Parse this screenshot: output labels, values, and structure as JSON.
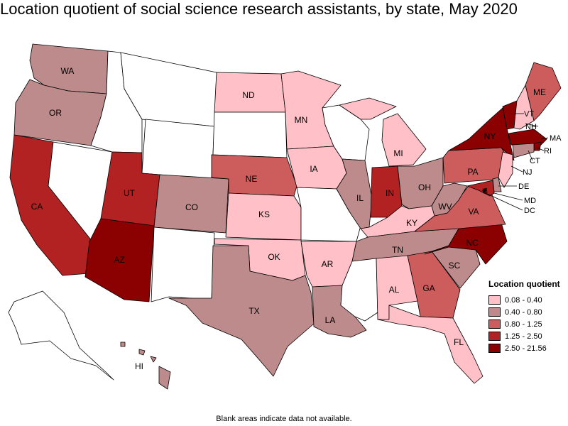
{
  "title": "Location quotient of social science research assistants, by state, May 2020",
  "footnote": "Blank areas indicate data not available.",
  "legend": {
    "title": "Location quotient",
    "items": [
      {
        "label": "0.08 - 0.40",
        "color": "#ffc0c8"
      },
      {
        "label": "0.40 - 0.80",
        "color": "#bd8b8b"
      },
      {
        "label": "0.80 - 1.25",
        "color": "#cd5c5c"
      },
      {
        "label": "1.25 - 2.50",
        "color": "#b22222"
      },
      {
        "label": "2.50 - 21.56",
        "color": "#8b0000"
      }
    ]
  },
  "chart_data": {
    "type": "choropleth",
    "title": "Location quotient of social science research assistants, by state, May 2020",
    "legend_title": "Location quotient",
    "legend_position": "bottom-right",
    "classes": [
      "0.08 - 0.40",
      "0.40 - 0.80",
      "0.80 - 1.25",
      "1.25 - 2.50",
      "2.50 - 21.56"
    ],
    "states": [
      {
        "abbr": "WA",
        "class": 1
      },
      {
        "abbr": "OR",
        "class": 1
      },
      {
        "abbr": "CA",
        "class": 3
      },
      {
        "abbr": "NV",
        "class": null
      },
      {
        "abbr": "ID",
        "class": null
      },
      {
        "abbr": "MT",
        "class": null
      },
      {
        "abbr": "WY",
        "class": null
      },
      {
        "abbr": "UT",
        "class": 3
      },
      {
        "abbr": "AZ",
        "class": 4
      },
      {
        "abbr": "CO",
        "class": 1
      },
      {
        "abbr": "NM",
        "class": null
      },
      {
        "abbr": "ND",
        "class": 0
      },
      {
        "abbr": "SD",
        "class": null
      },
      {
        "abbr": "NE",
        "class": 2
      },
      {
        "abbr": "KS",
        "class": 0
      },
      {
        "abbr": "OK",
        "class": 0
      },
      {
        "abbr": "TX",
        "class": 1
      },
      {
        "abbr": "MN",
        "class": 0
      },
      {
        "abbr": "IA",
        "class": 0
      },
      {
        "abbr": "MO",
        "class": null
      },
      {
        "abbr": "AR",
        "class": 0
      },
      {
        "abbr": "LA",
        "class": 1
      },
      {
        "abbr": "WI",
        "class": null
      },
      {
        "abbr": "IL",
        "class": 1
      },
      {
        "abbr": "MI",
        "class": 0
      },
      {
        "abbr": "IN",
        "class": 3
      },
      {
        "abbr": "OH",
        "class": 1
      },
      {
        "abbr": "KY",
        "class": 0
      },
      {
        "abbr": "TN",
        "class": 1
      },
      {
        "abbr": "MS",
        "class": null
      },
      {
        "abbr": "AL",
        "class": 0
      },
      {
        "abbr": "GA",
        "class": 2
      },
      {
        "abbr": "FL",
        "class": 0
      },
      {
        "abbr": "SC",
        "class": 1
      },
      {
        "abbr": "NC",
        "class": 4
      },
      {
        "abbr": "VA",
        "class": 2
      },
      {
        "abbr": "WV",
        "class": 1
      },
      {
        "abbr": "PA",
        "class": 2
      },
      {
        "abbr": "NY",
        "class": 4
      },
      {
        "abbr": "VT",
        "class": 4
      },
      {
        "abbr": "NH",
        "class": 0
      },
      {
        "abbr": "ME",
        "class": 2
      },
      {
        "abbr": "MA",
        "class": 4
      },
      {
        "abbr": "RI",
        "class": 4
      },
      {
        "abbr": "CT",
        "class": 1
      },
      {
        "abbr": "NJ",
        "class": 0
      },
      {
        "abbr": "DE",
        "class": 1
      },
      {
        "abbr": "MD",
        "class": 3
      },
      {
        "abbr": "DC",
        "class": 4
      },
      {
        "abbr": "AK",
        "class": null
      },
      {
        "abbr": "HI",
        "class": 1
      }
    ]
  }
}
